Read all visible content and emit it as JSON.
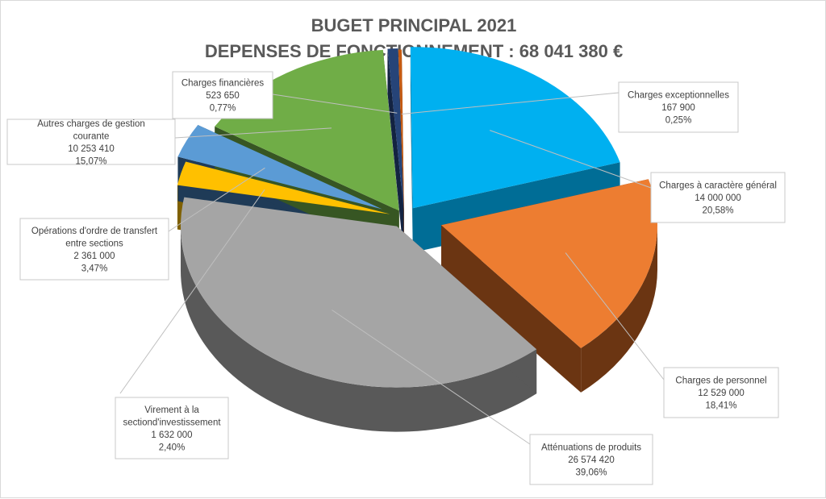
{
  "chart_data": {
    "type": "pie",
    "style": "3d-exploded",
    "title": "BUGET PRINCIPAL 2021",
    "subtitle": "DEPENSES DE FONCTIONNEMENT : 68 041 380 €",
    "slices": [
      {
        "name": "Charges exceptionnelles",
        "value": 167900,
        "value_label": "167 900",
        "percent_label": "0,25%",
        "color": "#c55a11",
        "side_color": "#7f3a0c"
      },
      {
        "name": "Charges à caractère général",
        "value": 14000000,
        "value_label": "14 000 000",
        "percent_label": "20,58%",
        "color": "#00b0f0",
        "side_color": "#006d96"
      },
      {
        "name": "Charges de personnel",
        "value": 12529000,
        "value_label": "12 529 000",
        "percent_label": "18,41%",
        "color": "#ed7d31",
        "side_color": "#6b3512"
      },
      {
        "name": "Atténuations de produits",
        "value": 26574420,
        "value_label": "26 574 420",
        "percent_label": "39,06%",
        "color": "#a5a5a5",
        "side_color": "#595959"
      },
      {
        "name": "Virement à la sectiond'investissement",
        "value": 1632000,
        "value_label": "1 632 000",
        "percent_label": "2,40%",
        "color": "#ffc000",
        "side_color": "#7f6000"
      },
      {
        "name": "Opérations d'ordre de transfert entre sections",
        "value": 2361000,
        "value_label": "2 361 000",
        "percent_label": "3,47%",
        "color": "#5b9bd5",
        "side_color": "#1f3b57"
      },
      {
        "name": "Autres charges de gestion courante",
        "value": 10253410,
        "value_label": "10 253 410",
        "percent_label": "15,07%",
        "color": "#70ad47",
        "side_color": "#375623"
      },
      {
        "name": "Charges financières",
        "value": 523650,
        "value_label": "523 650",
        "percent_label": "0,77%",
        "color": "#264478",
        "side_color": "#132341"
      }
    ],
    "legend": "none",
    "data_labels": "callout boxes with name, value and percent"
  }
}
